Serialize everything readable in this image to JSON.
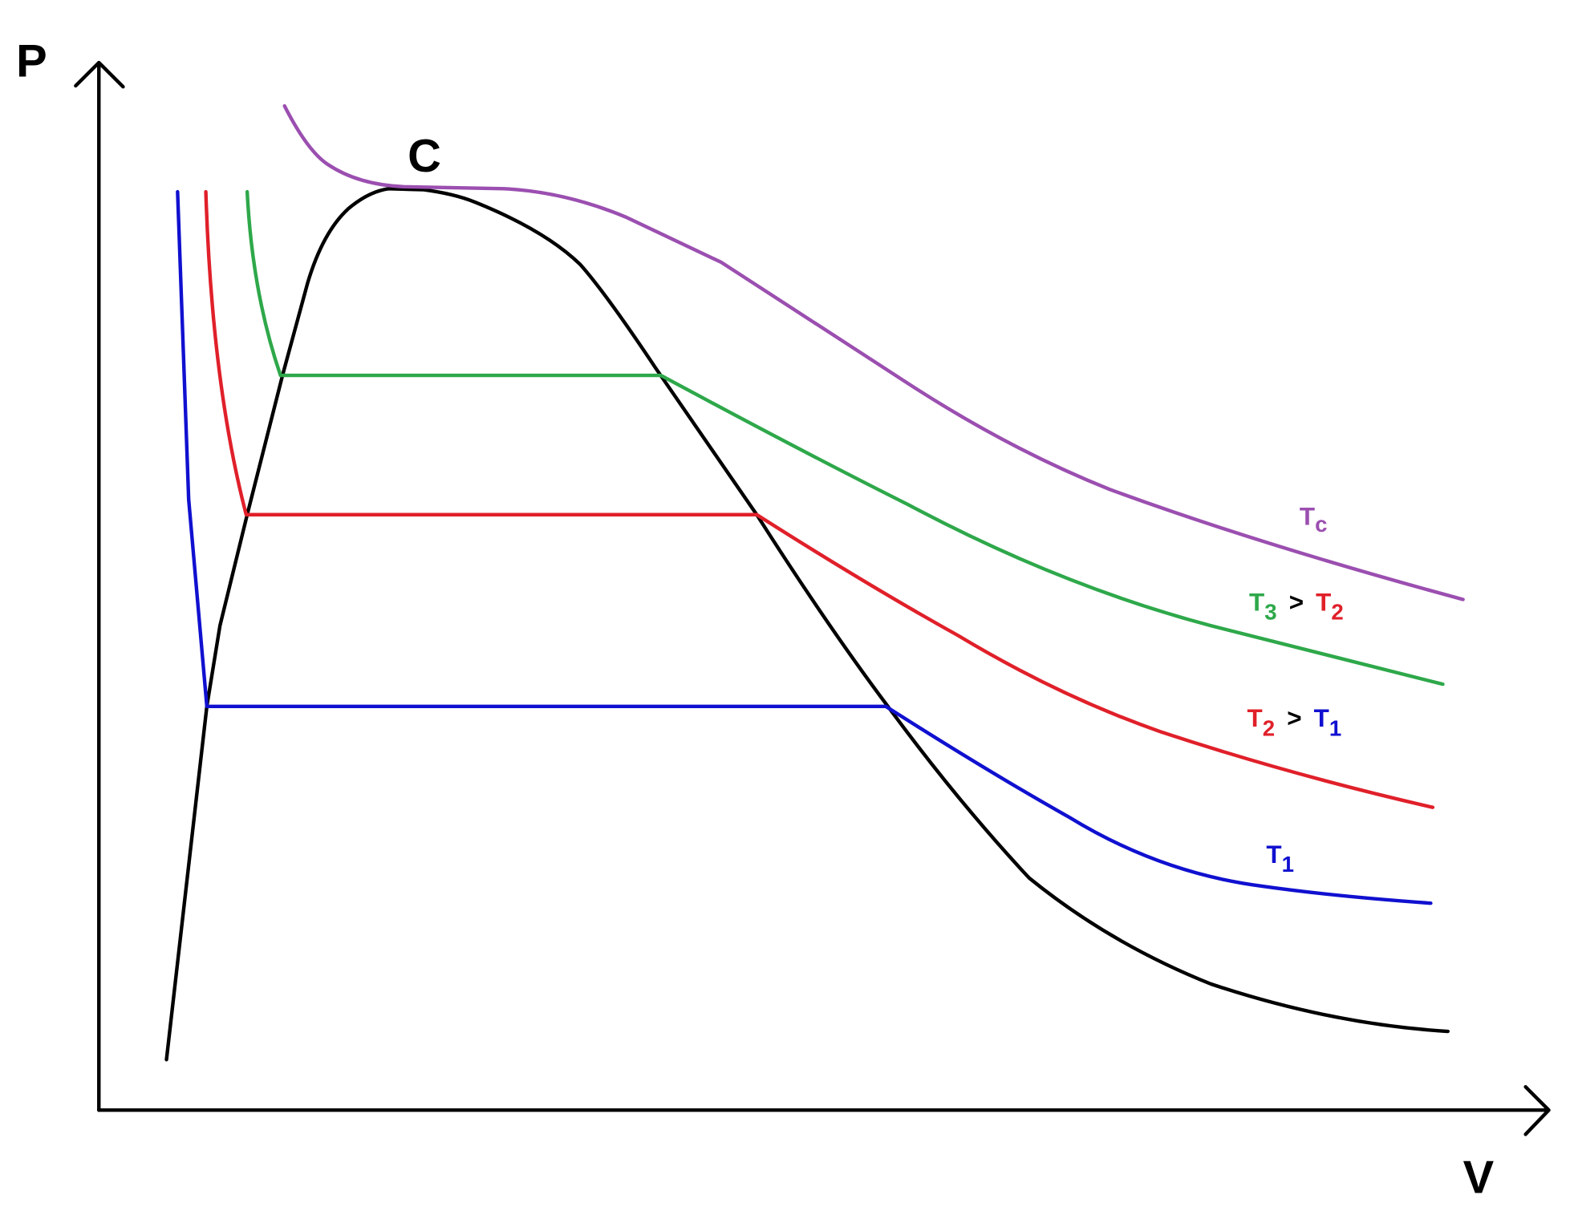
{
  "axes": {
    "y_label": "P",
    "x_label": "V"
  },
  "critical_point": {
    "label": "C"
  },
  "isotherm_labels": [
    {
      "parts": [
        {
          "text": "T",
          "sub": "c"
        }
      ]
    },
    {
      "parts": [
        {
          "text": "T",
          "sub": "3"
        },
        {
          "text": ">"
        },
        {
          "text": "T",
          "sub": "2"
        }
      ]
    },
    {
      "parts": [
        {
          "text": "T",
          "sub": "2"
        },
        {
          "text": ">"
        },
        {
          "text": "T",
          "sub": "1"
        }
      ]
    },
    {
      "parts": [
        {
          "text": "T",
          "sub": "1"
        }
      ]
    }
  ]
}
